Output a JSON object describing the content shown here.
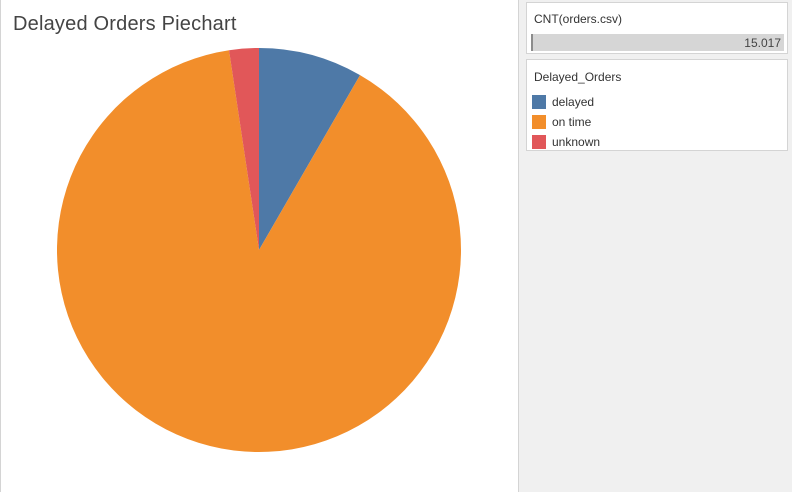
{
  "title": "Delayed Orders Piechart",
  "size_legend": {
    "title": "CNT(orders.csv)",
    "value_label": "15.017"
  },
  "color_legend": {
    "title": "Delayed_Orders",
    "items": [
      {
        "label": "delayed",
        "color": "#4e79a7"
      },
      {
        "label": "on time",
        "color": "#f28e2b"
      },
      {
        "label": "unknown",
        "color": "#e15759"
      }
    ]
  },
  "chart_data": {
    "type": "pie",
    "title": "Delayed Orders Piechart",
    "categories": [
      "delayed",
      "on time",
      "unknown"
    ],
    "values": [
      1252,
      13409,
      356
    ],
    "colors": [
      "#4e79a7",
      "#f28e2b",
      "#e15759"
    ],
    "start_angle_deg": 0,
    "direction": "clockwise",
    "legend": "right"
  }
}
